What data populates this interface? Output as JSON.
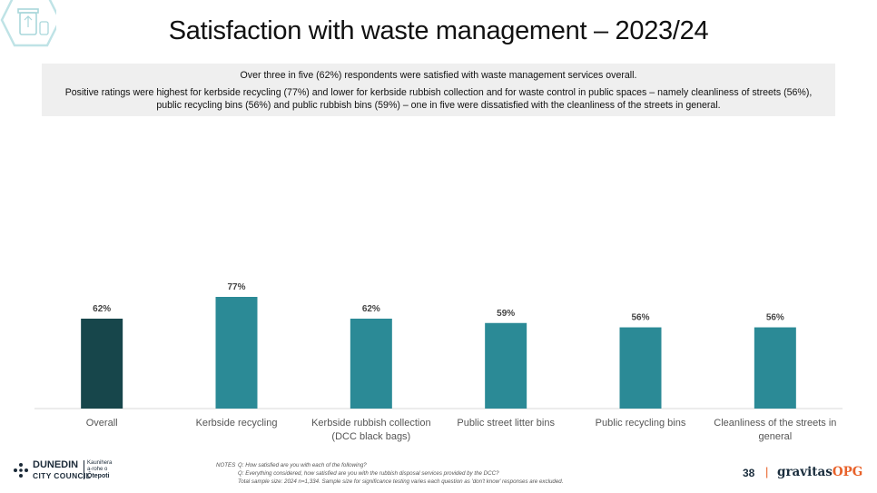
{
  "page": {
    "title": "Satisfaction with waste management – 2023/24",
    "summary_line1": "Over three in five (62%) respondents were satisfied with waste management services overall.",
    "summary_line2": "Positive ratings were highest for kerbside recycling (77%) and lower for kerbside rubbish collection and for waste control in public spaces – namely cleanliness of streets (56%), public recycling bins (56%) and public rubbish bins (59%) – one in five were dissatisfied with the cleanliness of the streets in general.",
    "page_number": "38",
    "brand_main": "gravitas",
    "brand_accent": "OPG",
    "council_line1": "DUNEDIN",
    "council_line2": "CITY COUNCIL",
    "council_maori_1": "Kaunihera",
    "council_maori_2": "a-rohe o",
    "council_maori_3": "Ōtepoti"
  },
  "notes": {
    "label": "NOTES",
    "q1": "Q: How satisfied are you with each of the following?",
    "q2": "Q: Everything considered, how satisfied are you with the rubbish disposal services provided by the DCC?",
    "sample": "Total sample size: 2024 n=1,334. Sample size for significance testing varies each question as 'don't know' responses are excluded."
  },
  "chart_data": {
    "type": "bar",
    "categories": [
      [
        "Overall"
      ],
      [
        "Kerbside recycling"
      ],
      [
        "Kerbside rubbish collection",
        "(DCC black bags)"
      ],
      [
        "Public street litter bins"
      ],
      [
        "Public recycling bins"
      ],
      [
        "Cleanliness of the streets in",
        "general"
      ]
    ],
    "values": [
      62,
      77,
      62,
      59,
      56,
      56
    ],
    "data_labels": [
      "62%",
      "77%",
      "62%",
      "59%",
      "56%",
      "56%"
    ],
    "colors": [
      "#17464b",
      "#2b8a96",
      "#2b8a96",
      "#2b8a96",
      "#2b8a96",
      "#2b8a96"
    ],
    "ylim": [
      0,
      100
    ],
    "grid": false,
    "legend": "none",
    "xlabel": "",
    "ylabel": ""
  }
}
